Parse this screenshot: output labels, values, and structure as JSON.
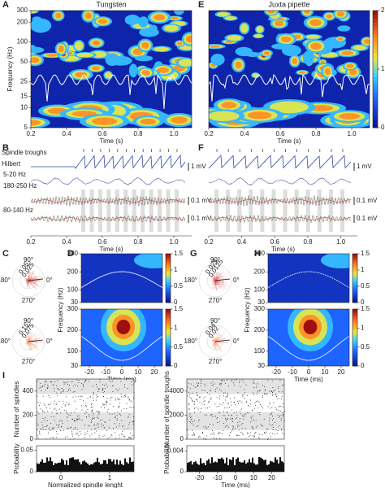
{
  "axes": [
    {
      "letter": "A",
      "title": "Tungsten",
      "xlabel": "Time (s)",
      "ylabel": "Frequency (Hz)",
      "xlim": [
        0.2,
        1.1
      ],
      "xticks": [
        0.2,
        0.4,
        0.6,
        0.8,
        {
          "value": 1,
          "label": "1.0"
        }
      ],
      "ylim": [
        5,
        300
      ],
      "yticks": [
        5,
        10,
        15,
        25,
        50,
        100,
        200,
        300
      ],
      "ylog": true
    },
    {
      "letter": "E",
      "title": "Juxta pipette",
      "xlabel": "Time (s)",
      "xlim": [
        0.2,
        1.1
      ],
      "xticks": [
        0.2,
        0.4,
        0.6,
        0.8,
        {
          "value": 1,
          "label": "1.0"
        }
      ],
      "ylim": [
        5,
        300
      ],
      "ylog": true
    },
    {
      "ylim": [
        0,
        2
      ],
      "yticks": [
        0,
        1,
        2
      ]
    },
    {
      "letter": "B",
      "xlabel": "Time (s)",
      "xlim": [
        0.2,
        1.1
      ],
      "xticks": [
        0.2,
        0.4,
        0.6,
        0.8,
        {
          "value": 1,
          "label": "1.0"
        }
      ]
    },
    {
      "letter": "F",
      "xlabel": "Time (s)",
      "xlim": [
        0.2,
        1.1
      ],
      "xticks": [
        0.2,
        0.4,
        0.6,
        0.8,
        {
          "value": 1,
          "label": "1.0"
        }
      ]
    },
    {
      "letter": "D",
      "ylabel": "Frequency (Hz)",
      "xlim": [
        -25,
        25
      ],
      "ylim": [
        30,
        300
      ],
      "yticks": [
        30,
        100,
        200,
        300
      ]
    },
    {
      "xlabel": "Time (ms)",
      "xlim": [
        -25,
        25
      ],
      "xticks": [
        -20,
        -10,
        0,
        10,
        20
      ],
      "ylim": [
        30,
        300
      ],
      "yticks": [
        30,
        100,
        200,
        300
      ]
    },
    {
      "ylim": [
        0,
        1.5
      ],
      "yticks": [
        0,
        0.5,
        1,
        1.5
      ]
    },
    {
      "ylim": [
        0,
        1.5
      ],
      "yticks": [
        0,
        0.5,
        1,
        1.5
      ]
    },
    {
      "letter": "H",
      "ylabel": "Frequency (Hz)",
      "xlim": [
        -25,
        25
      ],
      "ylim": [
        30,
        300
      ],
      "yticks": [
        30,
        100,
        200,
        300
      ]
    },
    {
      "xlabel": "Time (ms)",
      "xlim": [
        -25,
        25
      ],
      "xticks": [
        -20,
        -10,
        0,
        10,
        20
      ],
      "ylim": [
        30,
        300
      ],
      "yticks": [
        30,
        100,
        200,
        300
      ]
    },
    {
      "ylim": [
        0,
        1.5
      ],
      "yticks": [
        0,
        0.5,
        1,
        1.5
      ]
    },
    {
      "ylim": [
        0,
        1.5
      ],
      "yticks": [
        0,
        0.5,
        1,
        1.5
      ]
    },
    {
      "letter": "I",
      "ylabel": "Number of spindles",
      "xlim": [
        -0.5,
        1.5
      ],
      "ylim": [
        0,
        500
      ],
      "yticks": [
        0,
        200,
        400
      ]
    },
    {
      "ylabel": "Probability",
      "xlabel": "Normalized spindle lenght",
      "xlim": [
        -0.5,
        1.5
      ],
      "xticks": [
        0,
        1
      ],
      "ylim": [
        0,
        0.06
      ],
      "yticks": [
        0,
        0.05
      ]
    },
    {
      "ylabel": "Number of spindle troughs",
      "xlim": [
        -27,
        27
      ],
      "ylim": [
        0,
        5000
      ],
      "yticks": [
        0,
        2000,
        4000
      ]
    },
    {
      "ylabel": "Probability",
      "xlabel": "Time (ms)",
      "xlim": [
        -27,
        27
      ],
      "xticks": [
        -20,
        -10,
        0,
        10,
        20
      ],
      "ylim": [
        0,
        0.005
      ],
      "yticks": [
        0,
        0.004
      ]
    }
  ],
  "traces_b": {
    "labels": [
      "Spindle troughs",
      "Hilbert",
      "5-20 Hz",
      "180-250 Hz",
      "80-140 Hz"
    ],
    "scales": [
      "1 mV",
      "0.1 mV",
      "0.1 mV"
    ]
  },
  "traces_f": {
    "scales": [
      "1 mV",
      "0.1 mV",
      "0.1 mV"
    ]
  },
  "polar": [
    {
      "letter": "C",
      "plots": [
        {
          "angles": [
            "90°",
            "180°",
            "0°",
            "270°"
          ],
          "radii": [
            0.05,
            0.025
          ]
        },
        {
          "angles": [
            "90°",
            "180°",
            "0°",
            "270°"
          ],
          "radii": [
            0.15,
            0.075
          ]
        }
      ]
    },
    {
      "letter": "G",
      "plots": [
        {
          "angles": [
            "90°",
            "180°",
            "0°",
            "270°"
          ],
          "radii": [
            0.025,
            0.0125
          ]
        },
        {
          "angles": [
            "90°",
            "180°",
            "0°",
            "270°"
          ],
          "radii": [
            0.04,
            0.02
          ]
        }
      ]
    }
  ]
}
